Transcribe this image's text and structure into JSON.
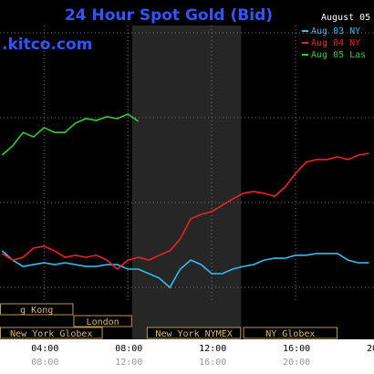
{
  "chart_data": {
    "type": "line",
    "title": "24 Hour Spot Gold (Bid)",
    "date_label": "August 05",
    "watermark": ".kitco.com",
    "x": [
      2,
      2.5,
      3,
      3.5,
      4,
      4.5,
      5,
      5.5,
      6,
      6.5,
      7,
      7.5,
      8,
      8.5,
      9,
      9.5,
      10,
      10.5,
      11,
      11.5,
      12,
      12.5,
      13,
      13.5,
      14,
      14.5,
      15,
      15.5,
      16,
      16.5,
      17,
      17.5,
      18,
      18.5,
      19,
      19.5
    ],
    "xlim": [
      1.9,
      19.74
    ],
    "ylim": [
      0,
      100
    ],
    "xticks": [
      {
        "value": 4,
        "label": "04:00"
      },
      {
        "value": 8,
        "label": "08:00"
      },
      {
        "value": 12,
        "label": "12:00"
      },
      {
        "value": 16,
        "label": "16:00"
      },
      {
        "value": 20,
        "label": "20"
      }
    ],
    "x2ticks": [
      {
        "value": 4,
        "label": "08:00"
      },
      {
        "value": 8,
        "label": "12:00"
      },
      {
        "value": 12,
        "label": "16:00"
      },
      {
        "value": 16,
        "label": "20:00"
      }
    ],
    "highlight_range": [
      8.2,
      13.4
    ],
    "sessions": [
      [
        {
          "label": "g Kong",
          "start": 1.9,
          "end": 5.4
        }
      ],
      [
        {
          "label": "London",
          "start": 5.4,
          "end": 8.2
        }
      ],
      [
        {
          "label": "New York Globex",
          "start": 1.9,
          "end": 6.8
        },
        {
          "label": "New York NYMEX",
          "start": 8.9,
          "end": 13.4
        },
        {
          "label": "NY Globex",
          "start": 13.5,
          "end": 18
        }
      ]
    ],
    "series": [
      {
        "name": "Aug 03 NY",
        "color": "#33bbee",
        "values": [
          16.7,
          13.6,
          11.5,
          12.1,
          12.7,
          12.1,
          12.7,
          12.1,
          11.5,
          11.5,
          12.1,
          12.1,
          10.6,
          10.6,
          9.1,
          7.6,
          4.5,
          10.6,
          13.6,
          12.1,
          9.1,
          9.1,
          10.6,
          11.5,
          12.1,
          13.6,
          14.2,
          14.2,
          15.2,
          15.2,
          15.8,
          15.8,
          15.8,
          13.6,
          12.7,
          12.7
        ]
      },
      {
        "name": "Aug 04 NY",
        "color": "#ee2222",
        "values": [
          15.8,
          13.6,
          14.5,
          17.6,
          18.2,
          16.7,
          14.5,
          15.2,
          14.5,
          15.2,
          13.6,
          10.6,
          13.6,
          14.5,
          13.6,
          15.2,
          16.7,
          20.6,
          27.3,
          28.8,
          29.7,
          31.8,
          33.9,
          35.8,
          36.4,
          35.8,
          34.8,
          37.9,
          42.4,
          46.1,
          47,
          47,
          47.9,
          47,
          48.5,
          49.1
        ]
      },
      {
        "name": "Aug 05 Las",
        "color": "#33cc33",
        "values": [
          48.5,
          51.5,
          56,
          54.5,
          57.6,
          56,
          56,
          59.1,
          60.6,
          60,
          61.2,
          60.6,
          62.1,
          59.7,
          null,
          null,
          null,
          null,
          null,
          null,
          null,
          null,
          null,
          null,
          null,
          null,
          null,
          null,
          null,
          null,
          null,
          null,
          null,
          null,
          null,
          null
        ]
      }
    ]
  }
}
